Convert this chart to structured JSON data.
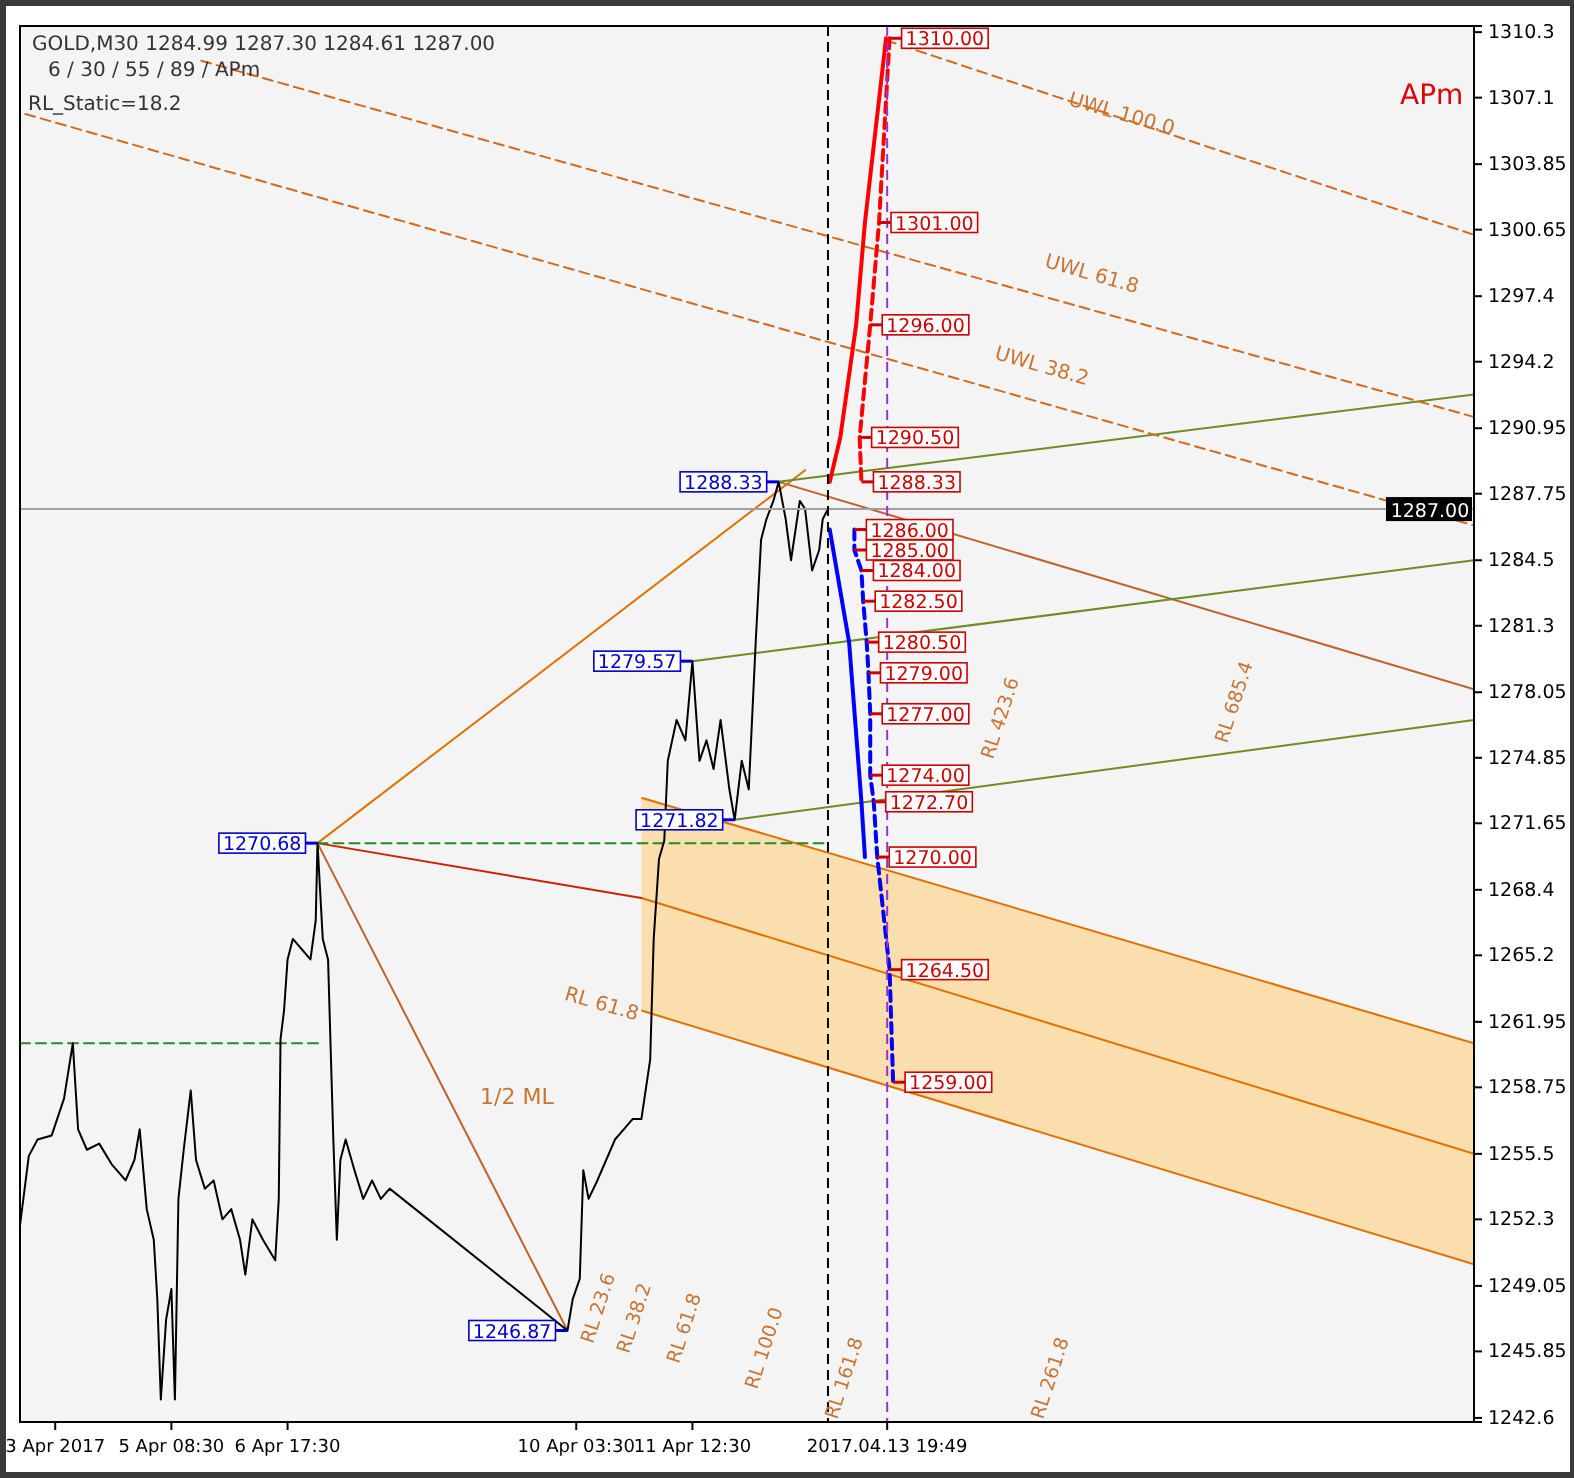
{
  "chart_data": {
    "type": "line",
    "title": "GOLD,M30 1284.99 1287.30 1284.61 1287.00",
    "subtitle": "6 / 30 / 55 / 89 / APm",
    "xlim": [
      "2017-04-03T13:30",
      "2017-04-20T18:30"
    ],
    "ylim": [
      1242.4,
      1310.6
    ],
    "xticks": [
      {
        "value": "2017-04-03T23:30",
        "label": "3 Apr 2017"
      },
      {
        "value": "2017-04-05T08:30",
        "label": "5 Apr 08:30"
      },
      {
        "value": "2017-04-06T17:30",
        "label": "6 Apr 17:30"
      },
      {
        "value": "2017-04-10T03:30",
        "label": "10 Apr 03:30"
      },
      {
        "value": "2017-04-11T12:30",
        "label": "11 Apr 12:30"
      },
      {
        "value": "2017-04-13T19:49",
        "label": "2017.04.13 19:49"
      }
    ],
    "yticks": [
      1310.3,
      1307.1,
      1303.85,
      1300.65,
      1297.4,
      1294.2,
      1290.95,
      1287.75,
      1284.5,
      1281.3,
      1278.05,
      1274.85,
      1271.65,
      1268.4,
      1265.2,
      1261.95,
      1258.75,
      1255.5,
      1252.3,
      1249.05,
      1245.85,
      1242.6
    ],
    "grid": false,
    "series": [
      {
        "color": "#000000",
        "x": [
          "2017-04-03T13:30",
          "2017-04-03T16:00",
          "2017-04-03T18:30",
          "2017-04-03T22:30",
          "2017-04-04T02:00",
          "2017-04-04T04:30",
          "2017-04-04T06:00",
          "2017-04-04T08:30",
          "2017-04-04T12:00",
          "2017-04-04T15:30",
          "2017-04-04T19:30",
          "2017-04-04T22:00",
          "2017-04-04T23:30",
          "2017-04-05T01:30",
          "2017-04-05T03:30",
          "2017-04-05T04:30",
          "2017-04-05T05:30",
          "2017-04-05T07:00",
          "2017-04-05T08:30",
          "2017-04-05T09:30",
          "2017-04-05T10:30",
          "2017-04-05T12:00",
          "2017-04-05T14:00",
          "2017-04-05T15:30",
          "2017-04-05T18:00",
          "2017-04-05T20:30",
          "2017-04-05T23:00",
          "2017-04-06T01:30",
          "2017-04-06T04:00",
          "2017-04-06T05:30",
          "2017-04-06T07:30",
          "2017-04-06T10:30",
          "2017-04-06T14:00",
          "2017-04-06T15:00",
          "2017-04-06T15:30",
          "2017-04-06T16:30",
          "2017-04-06T17:30",
          "2017-04-06T19:00",
          "2017-04-06T21:30",
          "2017-04-07T00:00",
          "2017-04-07T01:30",
          "2017-04-07T02:00",
          "2017-04-07T03:30",
          "2017-04-07T05:00",
          "2017-04-07T06:30",
          "2017-04-07T07:30",
          "2017-04-07T08:30",
          "2017-04-07T10:00",
          "2017-04-07T12:30",
          "2017-04-07T15:00",
          "2017-04-07T17:30",
          "2017-04-07T20:00",
          "2017-04-07T22:30",
          "2017-04-10T01:00",
          "2017-04-10T02:30",
          "2017-04-10T04:30",
          "2017-04-10T05:30",
          "2017-04-10T07:00",
          "2017-04-10T09:30",
          "2017-04-10T12:00",
          "2017-04-10T14:30",
          "2017-04-10T17:00",
          "2017-04-10T19:30",
          "2017-04-10T22:00",
          "2017-04-11T00:30",
          "2017-04-11T01:30",
          "2017-04-11T03:00",
          "2017-04-11T04:30",
          "2017-04-11T05:30",
          "2017-04-11T08:00",
          "2017-04-11T10:30",
          "2017-04-11T12:30",
          "2017-04-11T14:30",
          "2017-04-11T16:30",
          "2017-04-11T18:30",
          "2017-04-11T20:30",
          "2017-04-11T23:00",
          "2017-04-12T00:30",
          "2017-04-12T02:30",
          "2017-04-12T04:30",
          "2017-04-12T06:30",
          "2017-04-12T08:00",
          "2017-04-12T09:30",
          "2017-04-12T11:30",
          "2017-04-12T13:00",
          "2017-04-12T15:00",
          "2017-04-12T16:30",
          "2017-04-12T19:00",
          "2017-04-12T20:30",
          "2017-04-12T22:30",
          "2017-04-13T00:30",
          "2017-04-13T01:30",
          "2017-04-13T03:00"
        ],
        "values": [
          1252.0,
          1255.4,
          1256.2,
          1256.4,
          1258.2,
          1260.9,
          1256.7,
          1255.7,
          1256.0,
          1255.0,
          1254.2,
          1255.2,
          1256.7,
          1252.8,
          1251.3,
          1248.4,
          1243.5,
          1247.4,
          1248.9,
          1243.5,
          1253.3,
          1255.7,
          1258.6,
          1255.2,
          1253.8,
          1254.2,
          1252.3,
          1252.8,
          1251.3,
          1249.6,
          1252.3,
          1251.3,
          1250.3,
          1253.3,
          1261.1,
          1262.5,
          1265.0,
          1266.0,
          1265.5,
          1265.0,
          1266.9,
          1270.68,
          1266.0,
          1265.0,
          1256.2,
          1251.3,
          1255.2,
          1256.2,
          1254.7,
          1253.3,
          1254.2,
          1253.3,
          1253.8,
          1246.87,
          1248.4,
          1249.4,
          1254.7,
          1253.3,
          1254.2,
          1255.2,
          1256.2,
          1256.7,
          1257.2,
          1257.2,
          1260.1,
          1266.0,
          1269.9,
          1270.8,
          1274.7,
          1276.7,
          1275.7,
          1279.57,
          1274.7,
          1275.7,
          1274.3,
          1276.7,
          1273.3,
          1271.82,
          1274.7,
          1273.3,
          1280.6,
          1285.5,
          1286.5,
          1287.4,
          1288.33,
          1286.5,
          1284.5,
          1287.4,
          1287.0,
          1284.0,
          1285.0,
          1286.5,
          1287.0
        ]
      },
      {
        "color": "#e07000",
        "x": [
          "2017-04-10T22:00",
          "2017-04-20T18:30"
        ],
        "values": [
          1268.0,
          1255.5
        ],
        "lower": [
          1262.5,
          1250.1
        ],
        "upper": [
          1272.9,
          1260.9
        ]
      },
      {
        "color": "#cc2200",
        "x": [
          "2017-04-07T02:00",
          "2017-04-10T22:00"
        ],
        "values": [
          1270.68,
          1268.0
        ]
      },
      {
        "color": "#c0622a",
        "x": [
          "2017-04-12T13:00",
          "2017-04-20T18:30"
        ],
        "values": [
          1288.33,
          1278.2
        ]
      },
      {
        "color": "#c0622a",
        "x": [
          "2017-04-07T02:00",
          "2017-04-10T01:00"
        ],
        "values": [
          1270.68,
          1246.87
        ]
      },
      {
        "color": "#e07000",
        "x": [
          "2017-04-07T02:00",
          "2017-04-12T20:30"
        ],
        "values": [
          1270.68,
          1288.9
        ]
      },
      {
        "color": "#6b8e23",
        "x": [
          "2017-04-12T13:00",
          "2017-04-20T18:30"
        ],
        "values": [
          1288.33,
          1292.6
        ]
      },
      {
        "color": "#6b8e23",
        "x": [
          "2017-04-11T12:30",
          "2017-04-20T18:30"
        ],
        "values": [
          1279.57,
          1284.5
        ]
      },
      {
        "color": "#6b8e23",
        "x": [
          "2017-04-12T00:30",
          "2017-04-20T18:30"
        ],
        "values": [
          1271.82,
          1276.7
        ]
      },
      {
        "color": "#d2691e",
        "line_style": "dashed",
        "x": [
          "2017-04-13T19:30",
          "2017-04-20T18:30"
        ],
        "values": [
          1309.9,
          1300.4
        ]
      },
      {
        "color": "#d2691e",
        "line_style": "dashed",
        "x": [
          "2017-04-05T17:00",
          "2017-04-20T18:30"
        ],
        "values": [
          1308.9,
          1291.5
        ]
      },
      {
        "color": "#d2691e",
        "line_style": "dashed",
        "x": [
          "2017-04-03T15:00",
          "2017-04-20T18:30"
        ],
        "values": [
          1306.3,
          1286.2
        ]
      },
      {
        "color": "#228b22",
        "line_style": "dashed",
        "x": [
          "2017-04-07T02:00",
          "2017-04-13T02:30"
        ],
        "values": [
          1270.68,
          1270.68
        ]
      },
      {
        "color": "#228b22",
        "line_style": "dashed",
        "x": [
          "2017-04-03T13:30",
          "2017-04-07T02:30"
        ],
        "values": [
          1260.9,
          1260.9
        ]
      },
      {
        "color": "#ff0000",
        "x": [
          "2017-04-13T03:30",
          "2017-04-13T06:30",
          "2017-04-13T11:00",
          "2017-04-13T13:30",
          "2017-04-13T19:30"
        ],
        "values": [
          1288.33,
          1290.5,
          1296.0,
          1301.0,
          1310.0
        ]
      },
      {
        "color": "#ff0000",
        "line_style": "dashed",
        "x": [
          "2017-04-13T20:30",
          "2017-04-13T17:30",
          "2017-04-13T15:00",
          "2017-04-13T12:00",
          "2017-04-13T12:30"
        ],
        "values": [
          1310.0,
          1301.0,
          1296.0,
          1290.5,
          1288.33
        ]
      },
      {
        "color": "#0000ff",
        "x": [
          "2017-04-13T03:30",
          "2017-04-13T09:00",
          "2017-04-13T12:30",
          "2017-04-13T13:30"
        ],
        "values": [
          1286.0,
          1280.5,
          1272.7,
          1270.0
        ]
      },
      {
        "color": "#0000ff",
        "line_style": "dashed",
        "x": [
          "2017-04-13T10:30",
          "2017-04-13T10:30",
          "2017-04-13T12:30",
          "2017-04-13T13:00",
          "2017-04-13T14:00",
          "2017-04-13T14:30",
          "2017-04-13T15:00",
          "2017-04-13T15:00",
          "2017-04-13T16:00",
          "2017-04-13T17:00",
          "2017-04-13T20:30",
          "2017-04-13T21:30"
        ],
        "values": [
          1286.0,
          1285.0,
          1284.0,
          1282.5,
          1280.5,
          1279.0,
          1277.0,
          1274.0,
          1272.7,
          1270.0,
          1264.5,
          1259.0
        ]
      }
    ],
    "ref_lines": [
      {
        "axis": "y",
        "value": 1287.0,
        "label": "1287.00",
        "color": "#a0a0a0",
        "line_style": "solid"
      },
      {
        "axis": "x",
        "value": "2017-04-13T03:00",
        "color": "#000000",
        "line_style": "dashed"
      },
      {
        "axis": "x",
        "value": "2017-04-13T19:49",
        "color": "#9932cc",
        "line_style": "dashed"
      }
    ],
    "annotations": [
      "RL_Static=18.2",
      "APm",
      "UWL 100.0",
      "UWL 61.8",
      "UWL 38.2",
      "1/2 ML",
      "RL 61.8",
      "RL 23.6",
      "RL 38.2",
      "RL 61.8",
      "RL 100.0",
      "RL 161.8",
      "RL 261.8",
      "RL 423.6",
      "RL 685.4",
      {
        "text": "1310.00",
        "x": "2017-04-13T20:30",
        "y": 1310.0
      },
      {
        "text": "1301.00",
        "x": "2017-04-13T17:30",
        "y": 1301.0
      },
      {
        "text": "1296.00",
        "x": "2017-04-13T15:00",
        "y": 1296.0
      },
      {
        "text": "1290.50",
        "x": "2017-04-13T12:00",
        "y": 1290.5
      },
      {
        "text": "1288.33",
        "x": "2017-04-13T12:30",
        "y": 1288.33
      },
      {
        "text": "1286.00",
        "x": "2017-04-13T10:30",
        "y": 1286.0
      },
      {
        "text": "1285.00",
        "x": "2017-04-13T10:30",
        "y": 1285.0
      },
      {
        "text": "1284.00",
        "x": "2017-04-13T12:30",
        "y": 1284.0
      },
      {
        "text": "1282.50",
        "x": "2017-04-13T13:00",
        "y": 1282.5
      },
      {
        "text": "1280.50",
        "x": "2017-04-13T14:00",
        "y": 1280.5
      },
      {
        "text": "1279.00",
        "x": "2017-04-13T14:30",
        "y": 1279.0
      },
      {
        "text": "1277.00",
        "x": "2017-04-13T15:00",
        "y": 1277.0
      },
      {
        "text": "1274.00",
        "x": "2017-04-13T15:00",
        "y": 1274.0
      },
      {
        "text": "1272.70",
        "x": "2017-04-13T16:00",
        "y": 1272.7
      },
      {
        "text": "1270.00",
        "x": "2017-04-13T17:00",
        "y": 1270.0
      },
      {
        "text": "1264.50",
        "x": "2017-04-13T20:30",
        "y": 1264.5
      },
      {
        "text": "1259.00",
        "x": "2017-04-13T21:30",
        "y": 1259.0
      },
      {
        "text": "1288.33",
        "x": "2017-04-12T13:00",
        "y": 1288.33
      },
      {
        "text": "1279.57",
        "x": "2017-04-11T12:30",
        "y": 1279.57
      },
      {
        "text": "1270.68",
        "x": "2017-04-07T02:00",
        "y": 1270.68
      },
      {
        "text": "1271.82",
        "x": "2017-04-12T00:30",
        "y": 1271.82
      },
      {
        "text": "1246.87",
        "x": "2017-04-10T01:00",
        "y": 1246.87
      }
    ]
  }
}
